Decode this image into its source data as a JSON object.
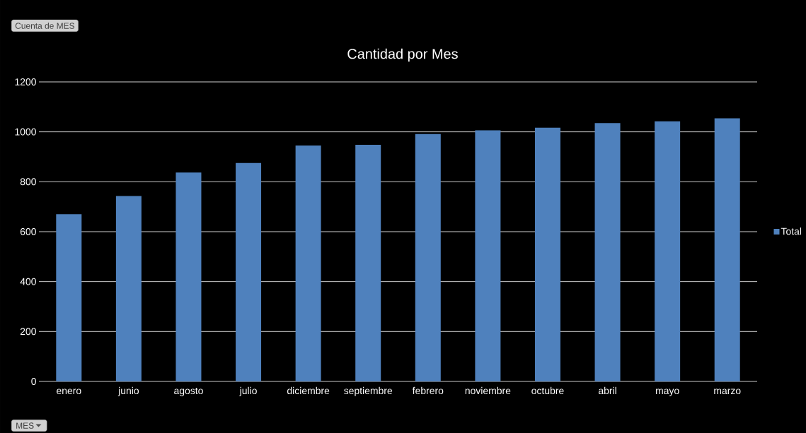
{
  "chart_data": {
    "type": "bar",
    "title": "Cantidad por Mes",
    "categories": [
      "enero",
      "junio",
      "agosto",
      "julio",
      "diciembre",
      "septiembre",
      "febrero",
      "noviembre",
      "octubre",
      "abril",
      "mayo",
      "marzo"
    ],
    "series": [
      {
        "name": "Total",
        "color": "#4f81bd",
        "values": [
          670,
          743,
          837,
          875,
          945,
          948,
          991,
          1006,
          1017,
          1035,
          1042,
          1054
        ]
      }
    ],
    "ylim": [
      0,
      1200
    ],
    "yticks": [
      0,
      200,
      400,
      600,
      800,
      1000,
      1200
    ],
    "grid": "y",
    "legend": "right",
    "annotations": [
      "Cuenta de MES",
      "MES"
    ]
  }
}
